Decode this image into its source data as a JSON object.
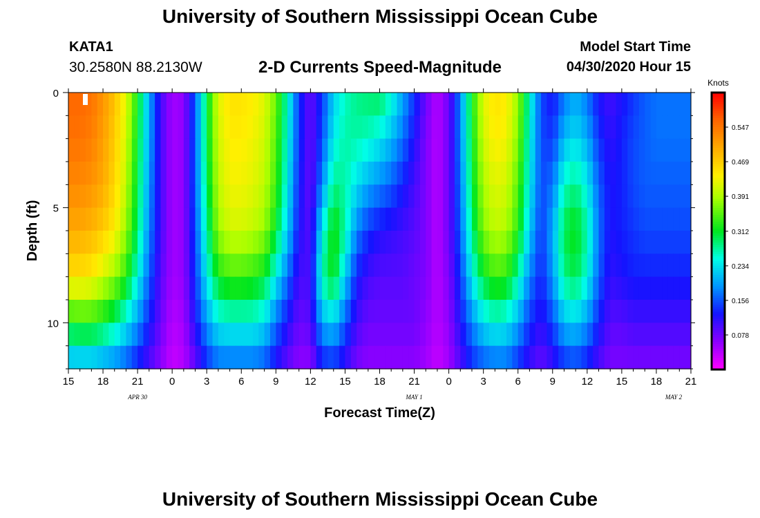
{
  "header": {
    "title": "University of Southern Mississippi Ocean Cube",
    "station_id": "KATA1",
    "station_coords": "30.2580N 88.2130W",
    "subtitle": "2-D Currents Speed-Magnitude",
    "model_start_label": "Model Start Time",
    "model_start_value": "04/30/2020 Hour 15"
  },
  "footer": {
    "title": "University of Southern Mississippi Ocean Cube"
  },
  "chart_data": {
    "type": "heatmap",
    "title": "2-D Currents Speed-Magnitude",
    "xlabel": "Forecast Time(Z)",
    "ylabel": "Depth (ft)",
    "x_ticks": [
      "15",
      "18",
      "21",
      "0",
      "3",
      "6",
      "9",
      "12",
      "15",
      "18",
      "21",
      "0",
      "3",
      "6",
      "9",
      "12",
      "15",
      "18",
      "21"
    ],
    "date_labels": [
      {
        "text": "APR 30",
        "at_tick": 2
      },
      {
        "text": "MAY 1",
        "at_tick": 10
      },
      {
        "text": "MAY 2",
        "at_tick": 17.5
      }
    ],
    "y_ticks": [
      "0",
      "5",
      "10"
    ],
    "ylim": [
      0,
      12
    ],
    "xlim_hours": [
      0,
      54
    ],
    "colorbar": {
      "unit": "Knots",
      "ticks": [
        "0.547",
        "0.469",
        "0.391",
        "0.312",
        "0.234",
        "0.156",
        "0.078"
      ],
      "tick_values": [
        0.547,
        0.469,
        0.391,
        0.312,
        0.234,
        0.156,
        0.078
      ],
      "range": [
        0.0,
        0.625
      ]
    },
    "colors": {
      "low": "#ff00ff",
      "high": "#ff0000"
    },
    "time_hours": [
      0,
      1,
      2,
      3,
      4,
      5,
      6,
      7,
      8,
      9,
      10,
      11,
      12,
      13,
      14,
      15,
      16,
      17,
      18,
      19,
      20,
      21,
      22,
      23,
      24,
      25,
      26,
      27,
      28,
      29,
      30,
      31,
      32,
      33,
      34,
      35,
      36,
      37,
      38,
      39,
      40,
      41,
      42,
      43,
      44,
      45,
      46,
      47,
      48,
      49,
      50,
      51,
      52,
      53,
      54
    ],
    "depth_ft": [
      0,
      2,
      4,
      6,
      8,
      10,
      12
    ],
    "speed_knots_by_depth": [
      [
        0.56,
        0.56,
        0.55,
        0.52,
        0.48,
        0.42,
        0.32,
        0.2,
        0.1,
        0.05,
        0.06,
        0.16,
        0.3,
        0.42,
        0.45,
        0.45,
        0.44,
        0.42,
        0.36,
        0.26,
        0.14,
        0.08,
        0.14,
        0.22,
        0.26,
        0.28,
        0.29,
        0.3,
        0.26,
        0.2,
        0.14,
        0.08,
        0.04,
        0.08,
        0.18,
        0.32,
        0.42,
        0.45,
        0.44,
        0.38,
        0.26,
        0.15,
        0.12,
        0.17,
        0.2,
        0.17,
        0.12,
        0.1,
        0.12,
        0.14,
        0.16,
        0.17,
        0.17,
        0.17,
        0.17
      ],
      [
        0.55,
        0.55,
        0.54,
        0.51,
        0.47,
        0.41,
        0.31,
        0.2,
        0.1,
        0.05,
        0.06,
        0.16,
        0.3,
        0.41,
        0.44,
        0.44,
        0.43,
        0.41,
        0.35,
        0.25,
        0.14,
        0.08,
        0.15,
        0.24,
        0.27,
        0.27,
        0.26,
        0.24,
        0.21,
        0.17,
        0.12,
        0.07,
        0.04,
        0.08,
        0.18,
        0.31,
        0.41,
        0.44,
        0.43,
        0.37,
        0.25,
        0.15,
        0.14,
        0.21,
        0.23,
        0.2,
        0.14,
        0.11,
        0.13,
        0.15,
        0.16,
        0.17,
        0.17,
        0.17,
        0.17
      ],
      [
        0.53,
        0.53,
        0.52,
        0.5,
        0.46,
        0.4,
        0.3,
        0.19,
        0.1,
        0.05,
        0.06,
        0.16,
        0.29,
        0.4,
        0.43,
        0.43,
        0.42,
        0.4,
        0.34,
        0.24,
        0.13,
        0.08,
        0.18,
        0.28,
        0.27,
        0.23,
        0.2,
        0.18,
        0.16,
        0.13,
        0.1,
        0.07,
        0.04,
        0.08,
        0.17,
        0.3,
        0.39,
        0.42,
        0.41,
        0.35,
        0.24,
        0.15,
        0.17,
        0.26,
        0.28,
        0.24,
        0.16,
        0.12,
        0.13,
        0.15,
        0.16,
        0.16,
        0.16,
        0.16,
        0.16
      ],
      [
        0.5,
        0.5,
        0.49,
        0.47,
        0.44,
        0.38,
        0.29,
        0.18,
        0.1,
        0.05,
        0.06,
        0.15,
        0.27,
        0.38,
        0.41,
        0.41,
        0.4,
        0.38,
        0.31,
        0.22,
        0.12,
        0.09,
        0.24,
        0.33,
        0.27,
        0.18,
        0.14,
        0.12,
        0.11,
        0.1,
        0.09,
        0.07,
        0.04,
        0.08,
        0.16,
        0.28,
        0.37,
        0.4,
        0.39,
        0.33,
        0.22,
        0.14,
        0.2,
        0.3,
        0.32,
        0.27,
        0.17,
        0.12,
        0.13,
        0.14,
        0.15,
        0.15,
        0.15,
        0.15,
        0.15
      ],
      [
        0.45,
        0.45,
        0.44,
        0.41,
        0.38,
        0.33,
        0.25,
        0.16,
        0.09,
        0.05,
        0.06,
        0.14,
        0.24,
        0.32,
        0.34,
        0.34,
        0.33,
        0.31,
        0.24,
        0.17,
        0.1,
        0.1,
        0.27,
        0.32,
        0.22,
        0.13,
        0.1,
        0.09,
        0.09,
        0.09,
        0.08,
        0.07,
        0.04,
        0.07,
        0.14,
        0.24,
        0.31,
        0.34,
        0.33,
        0.27,
        0.18,
        0.13,
        0.19,
        0.28,
        0.3,
        0.25,
        0.16,
        0.11,
        0.12,
        0.13,
        0.13,
        0.13,
        0.13,
        0.13,
        0.13
      ],
      [
        0.32,
        0.33,
        0.33,
        0.31,
        0.28,
        0.24,
        0.19,
        0.13,
        0.08,
        0.04,
        0.05,
        0.12,
        0.19,
        0.24,
        0.25,
        0.25,
        0.25,
        0.23,
        0.17,
        0.12,
        0.08,
        0.09,
        0.2,
        0.22,
        0.16,
        0.1,
        0.08,
        0.08,
        0.08,
        0.08,
        0.08,
        0.06,
        0.04,
        0.06,
        0.12,
        0.18,
        0.23,
        0.25,
        0.24,
        0.2,
        0.14,
        0.11,
        0.15,
        0.21,
        0.22,
        0.19,
        0.13,
        0.09,
        0.09,
        0.1,
        0.1,
        0.1,
        0.1,
        0.1,
        0.1
      ],
      [
        0.19,
        0.19,
        0.19,
        0.18,
        0.17,
        0.15,
        0.12,
        0.09,
        0.06,
        0.03,
        0.04,
        0.08,
        0.13,
        0.16,
        0.16,
        0.16,
        0.16,
        0.15,
        0.11,
        0.08,
        0.06,
        0.06,
        0.12,
        0.13,
        0.1,
        0.07,
        0.06,
        0.06,
        0.06,
        0.06,
        0.06,
        0.05,
        0.03,
        0.05,
        0.09,
        0.13,
        0.15,
        0.16,
        0.16,
        0.13,
        0.1,
        0.08,
        0.1,
        0.13,
        0.14,
        0.12,
        0.09,
        0.07,
        0.07,
        0.07,
        0.07,
        0.07,
        0.07,
        0.07,
        0.07
      ]
    ]
  }
}
